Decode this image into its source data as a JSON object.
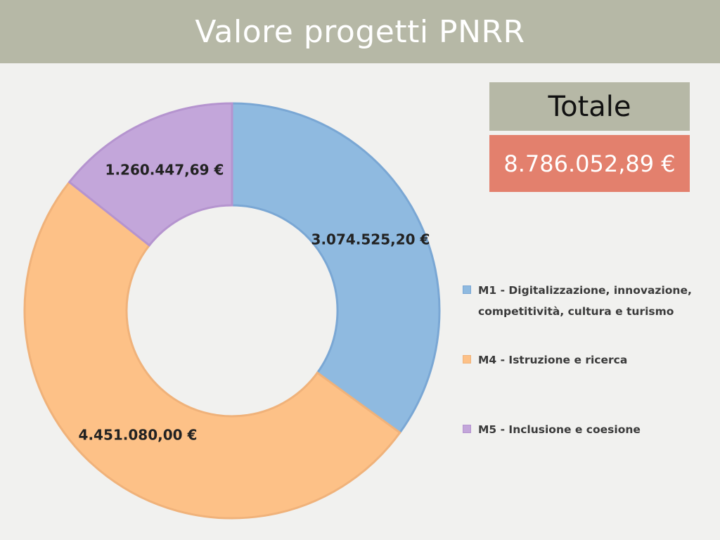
{
  "header": {
    "title": "Valore progetti PNRR"
  },
  "total": {
    "label": "Totale",
    "value": "8.786.052,89 €"
  },
  "chart_data": {
    "type": "pie",
    "variant": "donut",
    "categories": [
      "M1 - Digitalizzazione, innovazione, competitività, cultura e turismo",
      "M4 - Istruzione e ricerca",
      "M5 - Inclusione e coesione"
    ],
    "values": [
      3074525.2,
      4451080.0,
      1260447.69
    ],
    "value_labels": [
      "3.074.525,20 €",
      "4.451.080,00 €",
      "1.260.447,69 €"
    ],
    "colors": [
      "#8fbae0",
      "#fdc187",
      "#c3a6da"
    ],
    "border_colors": [
      "#7aa7d4",
      "#f0b27a",
      "#b594cf"
    ],
    "legend_position": "right"
  }
}
